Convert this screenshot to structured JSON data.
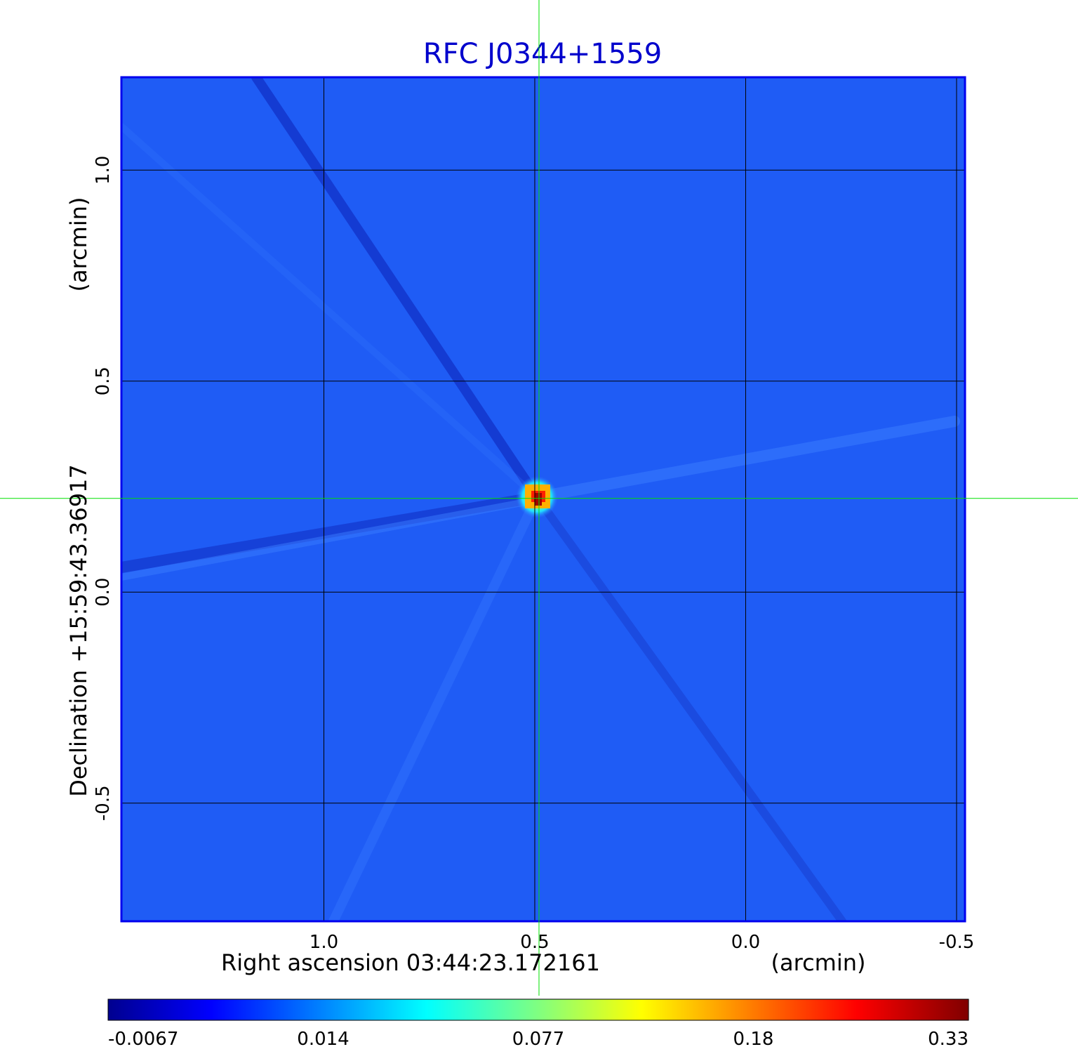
{
  "chart_data": {
    "type": "heatmap",
    "title": "RFC J0344+1559",
    "xlabel": "Right ascension  03:44:23.172161",
    "xunit": "(arcmin)",
    "ylabel": "Declination  +15:59:43.36917",
    "yunit": "(arcmin)",
    "x_range": [
      1.48,
      -0.52
    ],
    "y_range": [
      -0.78,
      1.22
    ],
    "x_ticks": [
      {
        "value": 1.0,
        "label": "1.0"
      },
      {
        "value": 0.5,
        "label": "0.5"
      },
      {
        "value": 0.0,
        "label": "0.0"
      },
      {
        "value": -0.5,
        "label": "-0.5"
      }
    ],
    "y_ticks": [
      {
        "value": 1.0,
        "label": "1.0"
      },
      {
        "value": 0.5,
        "label": "0.5"
      },
      {
        "value": 0.0,
        "label": "0.0"
      },
      {
        "value": -0.5,
        "label": "-0.5"
      }
    ],
    "grid": true,
    "crosshair": {
      "x": 0.49,
      "y": 0.222,
      "color": "#00e000"
    },
    "peak": {
      "x": 0.49,
      "y": 0.222,
      "value": 0.33
    },
    "colorbar": {
      "colormap": "jet",
      "placement": "bottom",
      "ticks": [
        {
          "value": -0.0067,
          "label": "-0.0067"
        },
        {
          "value": 0.014,
          "label": "0.014"
        },
        {
          "value": 0.077,
          "label": "0.077"
        },
        {
          "value": 0.18,
          "label": "0.18"
        },
        {
          "value": 0.33,
          "label": "0.33"
        }
      ]
    },
    "background_color": "#1f5cf5",
    "title_color": "#0000cc"
  }
}
